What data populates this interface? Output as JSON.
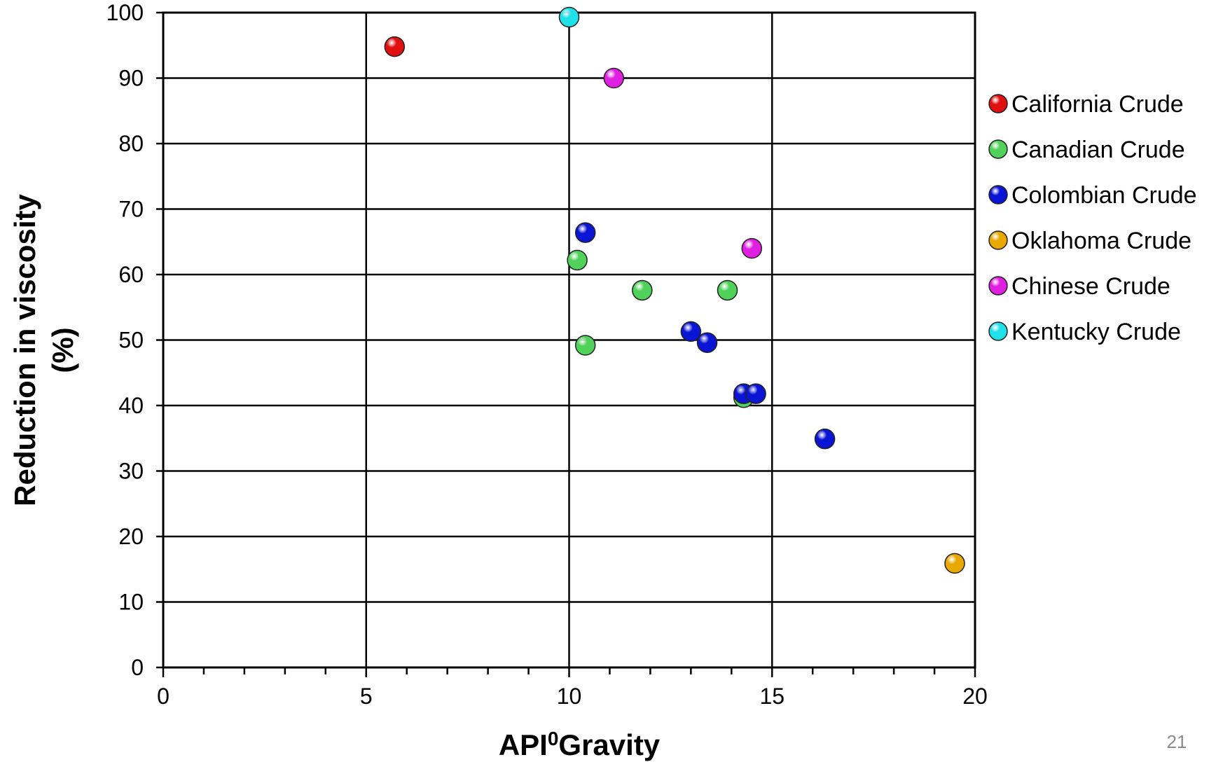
{
  "page_number": "21",
  "chart_data": {
    "type": "scatter",
    "title": "",
    "xlabel": "API",
    "xlabel_superscript": "0",
    "xlabel_suffix": "Gravity",
    "ylabel_line1": "Reduction in viscosity",
    "ylabel_line2": "(%)",
    "xlim": [
      0,
      20
    ],
    "ylim": [
      0,
      100
    ],
    "x_ticks": [
      0,
      5,
      10,
      15,
      20
    ],
    "y_ticks": [
      0,
      10,
      20,
      30,
      40,
      50,
      60,
      70,
      80,
      90,
      100
    ],
    "grid": true,
    "legend_position": "right",
    "series": [
      {
        "name": "California Crude",
        "color": "#e01010",
        "points": [
          [
            5.7,
            94.8
          ]
        ]
      },
      {
        "name": "Canadian Crude",
        "color": "#4fd15a",
        "points": [
          [
            10.2,
            62.2
          ],
          [
            10.4,
            49.2
          ],
          [
            11.8,
            57.6
          ],
          [
            13.9,
            57.6
          ],
          [
            14.3,
            41.2
          ]
        ]
      },
      {
        "name": "Colombian Crude",
        "color": "#0a14d4",
        "points": [
          [
            10.4,
            66.4
          ],
          [
            13.0,
            51.3
          ],
          [
            13.4,
            49.6
          ],
          [
            14.3,
            41.8
          ],
          [
            14.6,
            41.8
          ],
          [
            16.3,
            34.9
          ]
        ]
      },
      {
        "name": "Oklahoma Crude",
        "color": "#e8a800",
        "points": [
          [
            19.5,
            15.9
          ]
        ]
      },
      {
        "name": "Chinese Crude",
        "color": "#e020e0",
        "points": [
          [
            11.1,
            90.0
          ],
          [
            14.5,
            64.0
          ]
        ]
      },
      {
        "name": "Kentucky Crude",
        "color": "#20e0e8",
        "points": [
          [
            10.0,
            99.3
          ]
        ]
      }
    ]
  }
}
